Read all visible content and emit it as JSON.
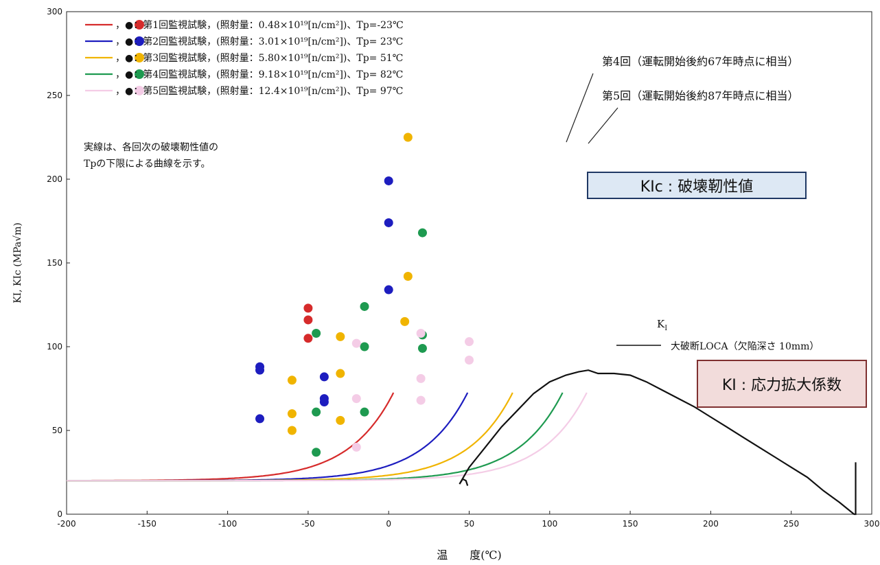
{
  "chart_data": {
    "type": "scatter",
    "xlabel": "温　　度(℃)",
    "ylabel": "KI, KIc (MPa√m)",
    "xlim": [
      -200,
      300
    ],
    "ylim": [
      0,
      300
    ],
    "xticks": [
      "-200",
      "-150",
      "-100",
      "-50",
      "0",
      "50",
      "100",
      "150",
      "200",
      "250",
      "300"
    ],
    "yticks": [
      "0",
      "50",
      "100",
      "150",
      "200",
      "250",
      "300"
    ],
    "grid": false,
    "legend_position": "top-left",
    "note": [
      "実線は、各回次の破壊靭性値の",
      "Tpの下限による曲線を示す。"
    ],
    "series": [
      {
        "name": "，●：第1回監視試験，(照射量：0.48×10¹⁹[n/cm²])、Tp=-23℃",
        "color": "#d62b2b",
        "curve_end_x": 3,
        "curve_shift": -23,
        "points": [
          [
            -50,
            123
          ],
          [
            -50,
            116
          ],
          [
            -50,
            105
          ]
        ]
      },
      {
        "name": "，●：第2回監視試験，(照射量：3.01×10¹⁹[n/cm²])、Tp= 23℃",
        "color": "#1d1dbf",
        "curve_end_x": 49,
        "curve_shift": 23,
        "points": [
          [
            -80,
            88
          ],
          [
            -80,
            86
          ],
          [
            -80,
            57
          ],
          [
            -40,
            82
          ],
          [
            -40,
            69
          ],
          [
            -40,
            67
          ],
          [
            0,
            199
          ],
          [
            0,
            174
          ],
          [
            0,
            134
          ]
        ]
      },
      {
        "name": "，●：第3回監視試験，(照射量：5.80×10¹⁹[n/cm²])、Tp= 51℃",
        "color": "#f0b400",
        "curve_end_x": 77,
        "curve_shift": 51,
        "points": [
          [
            -60,
            80
          ],
          [
            -60,
            60
          ],
          [
            -60,
            50
          ],
          [
            -30,
            106
          ],
          [
            -30,
            84
          ],
          [
            -30,
            56
          ],
          [
            10,
            115
          ],
          [
            12,
            225
          ],
          [
            12,
            142
          ]
        ]
      },
      {
        "name": "，●：第4回監視試験，(照射量：9.18×10¹⁹[n/cm²])、Tp= 82℃",
        "color": "#1e9a50",
        "curve_end_x": 108,
        "curve_shift": 82,
        "points": [
          [
            -45,
            108
          ],
          [
            -45,
            61
          ],
          [
            -45,
            37
          ],
          [
            -15,
            124
          ],
          [
            -15,
            100
          ],
          [
            -15,
            61
          ],
          [
            21,
            168
          ],
          [
            21,
            107
          ],
          [
            21,
            99
          ]
        ]
      },
      {
        "name": "，●：第5回監視試験，(照射量：12.4×10¹⁹[n/cm²])、Tp= 97℃",
        "color": "#f4cce6",
        "curve_end_x": 123,
        "curve_shift": 97,
        "points": [
          [
            -20,
            102
          ],
          [
            -20,
            69
          ],
          [
            -20,
            40
          ],
          [
            20,
            108
          ],
          [
            20,
            81
          ],
          [
            20,
            68
          ],
          [
            50,
            103
          ],
          [
            50,
            92
          ]
        ]
      }
    ],
    "ki_curve": {
      "name": "大破断LOCA（欠陥深さ 10mm）",
      "symbol": "KI",
      "color": "#111111",
      "points": [
        [
          49,
          17
        ],
        [
          48,
          20
        ],
        [
          46,
          21
        ],
        [
          44,
          18
        ],
        [
          50,
          28
        ],
        [
          60,
          40
        ],
        [
          70,
          52
        ],
        [
          80,
          62
        ],
        [
          90,
          72
        ],
        [
          100,
          79
        ],
        [
          110,
          83
        ],
        [
          118,
          85
        ],
        [
          124,
          86
        ],
        [
          130,
          84
        ],
        [
          140,
          84
        ],
        [
          150,
          83
        ],
        [
          160,
          79
        ],
        [
          170,
          74
        ],
        [
          180,
          69
        ],
        [
          190,
          64
        ],
        [
          200,
          58
        ],
        [
          210,
          52
        ],
        [
          220,
          46
        ],
        [
          230,
          40
        ],
        [
          240,
          34
        ],
        [
          250,
          28
        ],
        [
          260,
          22
        ],
        [
          270,
          14
        ],
        [
          280,
          7
        ],
        [
          289,
          0
        ],
        [
          290,
          0
        ],
        [
          290,
          31
        ]
      ]
    },
    "annotations": [
      "第4回（運転開始後約67年時点に相当）",
      "第5回（運転開始後約87年時点に相当）"
    ]
  },
  "boxes": {
    "kic_label": "KIc : 破壊靭性値",
    "ki_label": "KI : 応力拡大係数"
  }
}
